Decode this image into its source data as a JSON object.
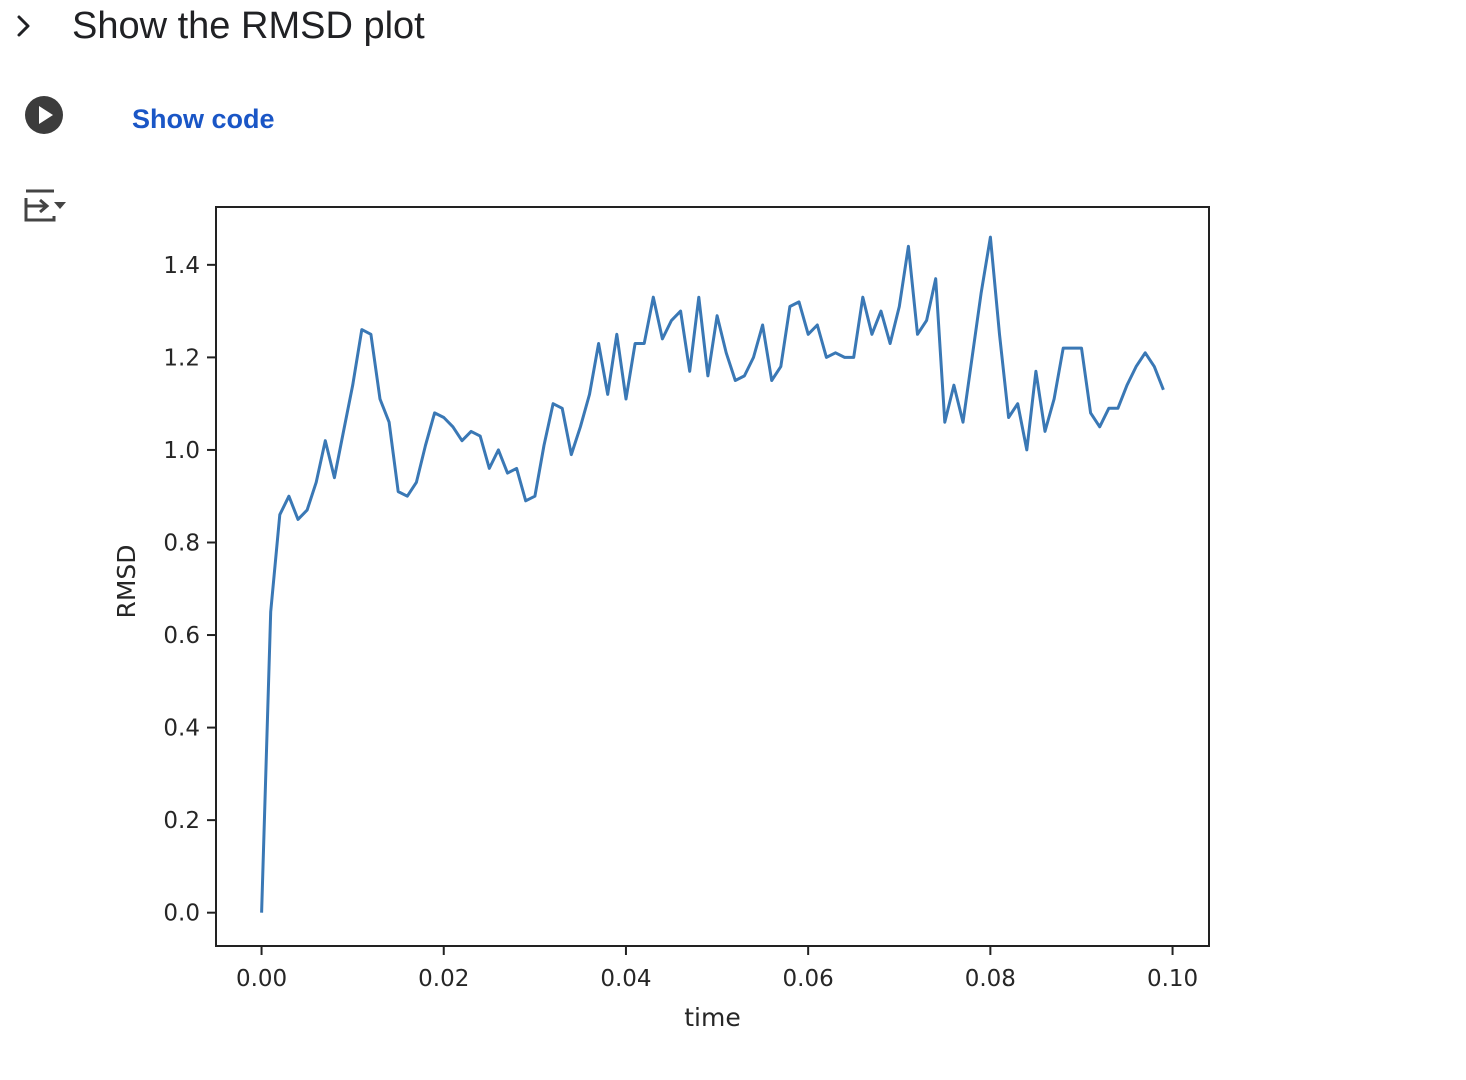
{
  "section": {
    "title": "Show the RMSD plot"
  },
  "cell": {
    "show_code_label": "Show code"
  },
  "icons": {
    "collapse": "chevron-right-icon",
    "run": "play-circle-icon",
    "output": "output-collapse-icon"
  },
  "colors": {
    "line": "#3a78b5",
    "link": "#1a56c6"
  },
  "chart_data": {
    "type": "line",
    "title": "",
    "xlabel": "time",
    "ylabel": "RMSD",
    "xlim": [
      -0.005,
      0.104
    ],
    "ylim": [
      -0.072,
      1.525
    ],
    "xticks": [
      0.0,
      0.02,
      0.04,
      0.06,
      0.08,
      0.1
    ],
    "xtick_labels": [
      "0.00",
      "0.02",
      "0.04",
      "0.06",
      "0.08",
      "0.10"
    ],
    "yticks": [
      0.0,
      0.2,
      0.4,
      0.6,
      0.8,
      1.0,
      1.2,
      1.4
    ],
    "ytick_labels": [
      "0.0",
      "0.2",
      "0.4",
      "0.6",
      "0.8",
      "1.0",
      "1.2",
      "1.4"
    ],
    "grid": false,
    "series": [
      {
        "x": [
          0.0,
          0.001,
          0.002,
          0.003,
          0.004,
          0.005,
          0.006,
          0.007,
          0.008,
          0.009,
          0.01,
          0.011,
          0.012,
          0.013,
          0.014,
          0.015,
          0.016,
          0.017,
          0.018,
          0.019,
          0.02,
          0.021,
          0.022,
          0.023,
          0.024,
          0.025,
          0.026,
          0.027,
          0.028,
          0.029,
          0.03,
          0.031,
          0.032,
          0.033,
          0.034,
          0.035,
          0.036,
          0.037,
          0.038,
          0.039,
          0.04,
          0.041,
          0.042,
          0.043,
          0.044,
          0.045,
          0.046,
          0.047,
          0.048,
          0.049,
          0.05,
          0.051,
          0.052,
          0.053,
          0.054,
          0.055,
          0.056,
          0.057,
          0.058,
          0.059,
          0.06,
          0.061,
          0.062,
          0.063,
          0.064,
          0.065,
          0.066,
          0.067,
          0.068,
          0.069,
          0.07,
          0.071,
          0.072,
          0.073,
          0.074,
          0.075,
          0.076,
          0.077,
          0.078,
          0.079,
          0.08,
          0.081,
          0.082,
          0.083,
          0.084,
          0.085,
          0.086,
          0.087,
          0.088,
          0.089,
          0.09,
          0.091,
          0.092,
          0.093,
          0.094,
          0.095,
          0.096,
          0.097,
          0.098,
          0.099
        ],
        "y": [
          0.0,
          0.65,
          0.86,
          0.9,
          0.85,
          0.87,
          0.93,
          1.02,
          0.94,
          1.04,
          1.14,
          1.26,
          1.25,
          1.11,
          1.06,
          0.91,
          0.9,
          0.93,
          1.01,
          1.08,
          1.07,
          1.05,
          1.02,
          1.04,
          1.03,
          0.96,
          1.0,
          0.95,
          0.96,
          0.89,
          0.9,
          1.01,
          1.1,
          1.09,
          0.99,
          1.05,
          1.12,
          1.23,
          1.12,
          1.25,
          1.11,
          1.23,
          1.23,
          1.33,
          1.24,
          1.28,
          1.3,
          1.17,
          1.33,
          1.16,
          1.29,
          1.21,
          1.15,
          1.16,
          1.2,
          1.27,
          1.15,
          1.18,
          1.31,
          1.32,
          1.25,
          1.27,
          1.2,
          1.21,
          1.2,
          1.2,
          1.33,
          1.25,
          1.3,
          1.23,
          1.31,
          1.44,
          1.25,
          1.28,
          1.37,
          1.06,
          1.14,
          1.06,
          1.2,
          1.34,
          1.46,
          1.25,
          1.07,
          1.1,
          1.0,
          1.17,
          1.04,
          1.11,
          1.22,
          1.22,
          1.22,
          1.08,
          1.05,
          1.09,
          1.09,
          1.14,
          1.18,
          1.21,
          1.18,
          1.13
        ]
      }
    ]
  }
}
